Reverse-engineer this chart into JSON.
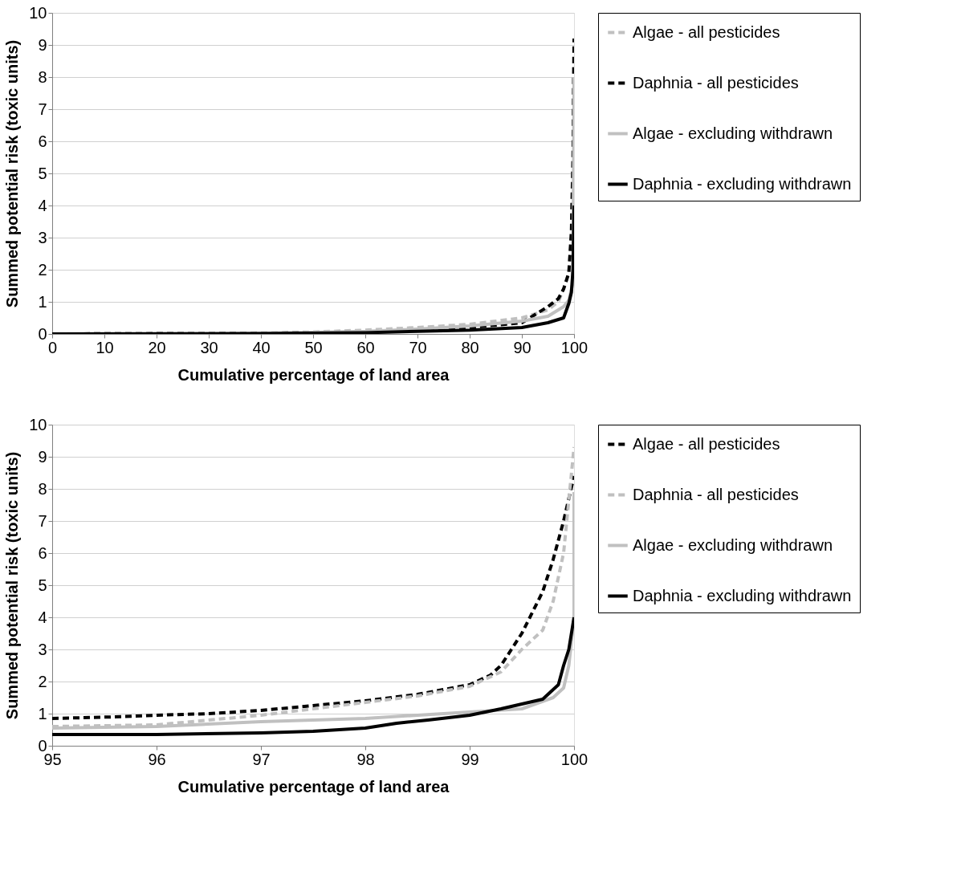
{
  "chart_data": [
    {
      "type": "line",
      "xlabel": "Cumulative percentage of land area",
      "ylabel": "Summed potential risk (toxic units)",
      "xlim": [
        0,
        100
      ],
      "xticks": [
        0,
        10,
        20,
        30,
        40,
        50,
        60,
        70,
        80,
        90,
        100
      ],
      "ylim": [
        0,
        10
      ],
      "yticks": [
        0,
        1,
        2,
        3,
        4,
        5,
        6,
        7,
        8,
        9,
        10
      ],
      "grid": "y",
      "legend": "right",
      "marker": "none",
      "series": [
        {
          "name": "Algae - all pesticides",
          "color": "#c0c0c0",
          "line_style": "dashed",
          "x": [
            0,
            30,
            40,
            50,
            60,
            70,
            80,
            90,
            95,
            97,
            98,
            99,
            99.5,
            99.8,
            100
          ],
          "values": [
            0,
            0.01,
            0.03,
            0.06,
            0.12,
            0.2,
            0.3,
            0.5,
            0.75,
            1.0,
            1.4,
            1.9,
            3,
            5,
            8.5
          ]
        },
        {
          "name": "Daphnia - all pesticides",
          "color": "#000000",
          "line_style": "dashed",
          "x": [
            0,
            40,
            50,
            60,
            70,
            80,
            90,
            95,
            97,
            98,
            99,
            99.5,
            99.8,
            100
          ],
          "values": [
            0,
            0.02,
            0.04,
            0.07,
            0.12,
            0.2,
            0.35,
            0.85,
            1.1,
            1.4,
            1.9,
            3.2,
            5.5,
            9.2
          ]
        },
        {
          "name": "Algae - excluding withdrawn",
          "color": "#c0c0c0",
          "line_style": "solid",
          "x": [
            0,
            40,
            60,
            70,
            80,
            90,
            95,
            98,
            99,
            99.8,
            100
          ],
          "values": [
            0,
            0.02,
            0.08,
            0.15,
            0.25,
            0.4,
            0.55,
            0.85,
            1.05,
            1.6,
            8.0
          ]
        },
        {
          "name": "Daphnia - excluding withdrawn",
          "color": "#000000",
          "line_style": "solid",
          "x": [
            0,
            40,
            60,
            70,
            80,
            90,
            95,
            98,
            99,
            99.5,
            99.8,
            100
          ],
          "values": [
            0,
            0.01,
            0.04,
            0.08,
            0.12,
            0.2,
            0.35,
            0.5,
            0.95,
            1.3,
            2.0,
            4.0
          ]
        }
      ]
    },
    {
      "type": "line",
      "xlabel": "Cumulative percentage of land area",
      "ylabel": "Summed potential risk (toxic units)",
      "xlim": [
        95,
        100
      ],
      "xticks": [
        95,
        96,
        97,
        98,
        99,
        100
      ],
      "ylim": [
        0,
        10
      ],
      "yticks": [
        0,
        1,
        2,
        3,
        4,
        5,
        6,
        7,
        8,
        9,
        10
      ],
      "grid": "y",
      "legend": "right",
      "marker": "none",
      "series": [
        {
          "name": "Algae - all pesticides",
          "color": "#000000",
          "line_style": "dashed",
          "x": [
            95,
            95.6,
            96,
            96.5,
            97,
            97.5,
            98,
            98.5,
            99,
            99.2,
            99.3,
            99.4,
            99.5,
            99.7,
            99.8,
            99.9,
            100
          ],
          "values": [
            0.85,
            0.9,
            0.95,
            1.0,
            1.1,
            1.25,
            1.4,
            1.6,
            1.9,
            2.2,
            2.5,
            3.0,
            3.5,
            4.8,
            5.8,
            7.0,
            8.4
          ]
        },
        {
          "name": "Daphnia - all pesticides",
          "color": "#c0c0c0",
          "line_style": "dashed",
          "x": [
            95,
            96,
            97,
            98,
            98.5,
            99,
            99.3,
            99.5,
            99.7,
            99.8,
            99.9,
            100
          ],
          "values": [
            0.6,
            0.65,
            0.95,
            1.35,
            1.55,
            1.85,
            2.3,
            3.0,
            3.6,
            4.5,
            6.0,
            9.3
          ]
        },
        {
          "name": "Algae - excluding withdrawn",
          "color": "#c0c0c0",
          "line_style": "solid",
          "x": [
            95,
            96,
            97,
            98,
            98.5,
            99,
            99.5,
            99.8,
            99.9,
            99.95,
            100,
            100
          ],
          "values": [
            0.55,
            0.6,
            0.75,
            0.85,
            0.95,
            1.05,
            1.15,
            1.5,
            1.8,
            2.5,
            4.0,
            7.9
          ]
        },
        {
          "name": "Daphnia - excluding withdrawn",
          "color": "#000000",
          "line_style": "solid",
          "x": [
            95,
            96,
            96.6,
            97,
            97.5,
            98,
            98.3,
            98.6,
            99,
            99.3,
            99.5,
            99.7,
            99.85,
            99.9,
            99.95,
            100
          ],
          "values": [
            0.35,
            0.35,
            0.38,
            0.4,
            0.45,
            0.55,
            0.7,
            0.8,
            0.95,
            1.15,
            1.3,
            1.45,
            1.9,
            2.5,
            3.0,
            4.0
          ]
        }
      ]
    }
  ]
}
